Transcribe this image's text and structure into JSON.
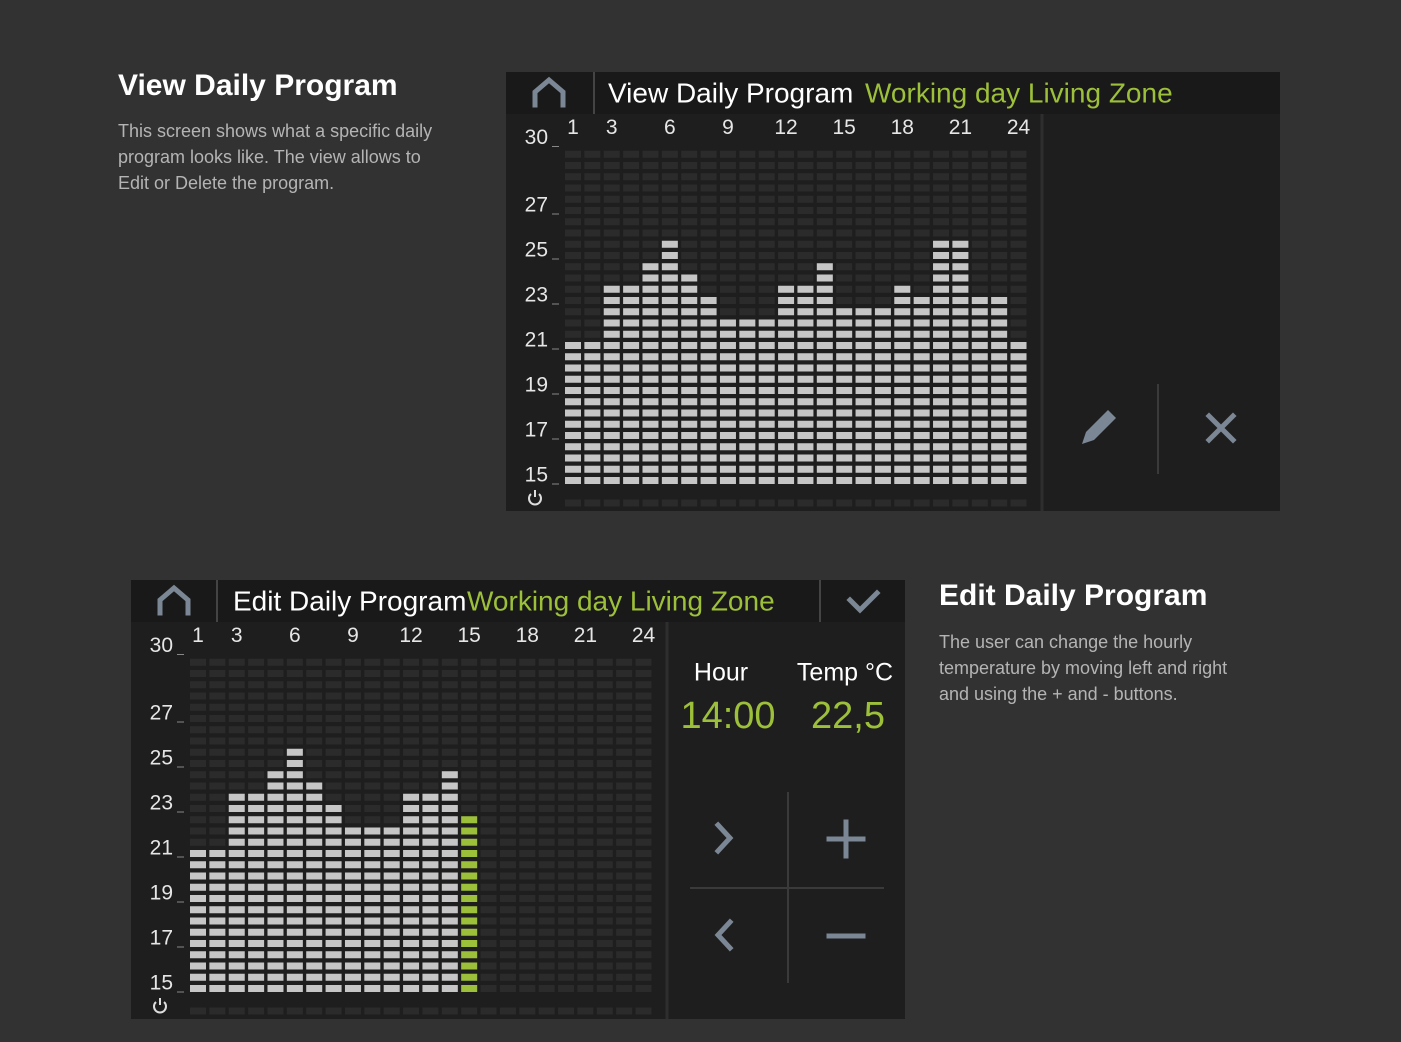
{
  "view": {
    "heading": "View Daily Program",
    "description": [
      "This screen shows what a specific daily",
      "program looks like. The view allows to",
      "Edit or Delete the program."
    ],
    "screen": {
      "title": "View Daily Program",
      "zone": "Working day Living Zone",
      "x_labels": [
        1,
        3,
        6,
        9,
        12,
        15,
        18,
        21,
        24
      ],
      "y_labels": [
        30,
        27,
        25,
        23,
        21,
        19,
        17,
        15
      ],
      "values": [
        21,
        21,
        23.5,
        23.5,
        24.5,
        25.5,
        24,
        23,
        22,
        22,
        22,
        23.5,
        23.5,
        24.5,
        22.5,
        22.5,
        22.5,
        23.5,
        23,
        25.5,
        25.5,
        23,
        23,
        21
      ]
    }
  },
  "edit": {
    "heading": "Edit Daily Program",
    "description": [
      "The user can change the hourly",
      "temperature by moving left and right",
      "and using the + and - buttons."
    ],
    "screen": {
      "title": "Edit Daily Program",
      "zone": "Working day Living Zone",
      "x_labels": [
        1,
        3,
        6,
        9,
        12,
        15,
        18,
        21,
        24
      ],
      "y_labels": [
        30,
        27,
        25,
        23,
        21,
        19,
        17,
        15
      ],
      "values": [
        21,
        21,
        23.5,
        23.5,
        24.5,
        25.5,
        24,
        23,
        22,
        22,
        22,
        23.5,
        23.5,
        24.5,
        22.5
      ],
      "hour_label": "Hour",
      "temp_label": "Temp °C",
      "hour": "14:00",
      "temp": "22,5"
    }
  }
}
